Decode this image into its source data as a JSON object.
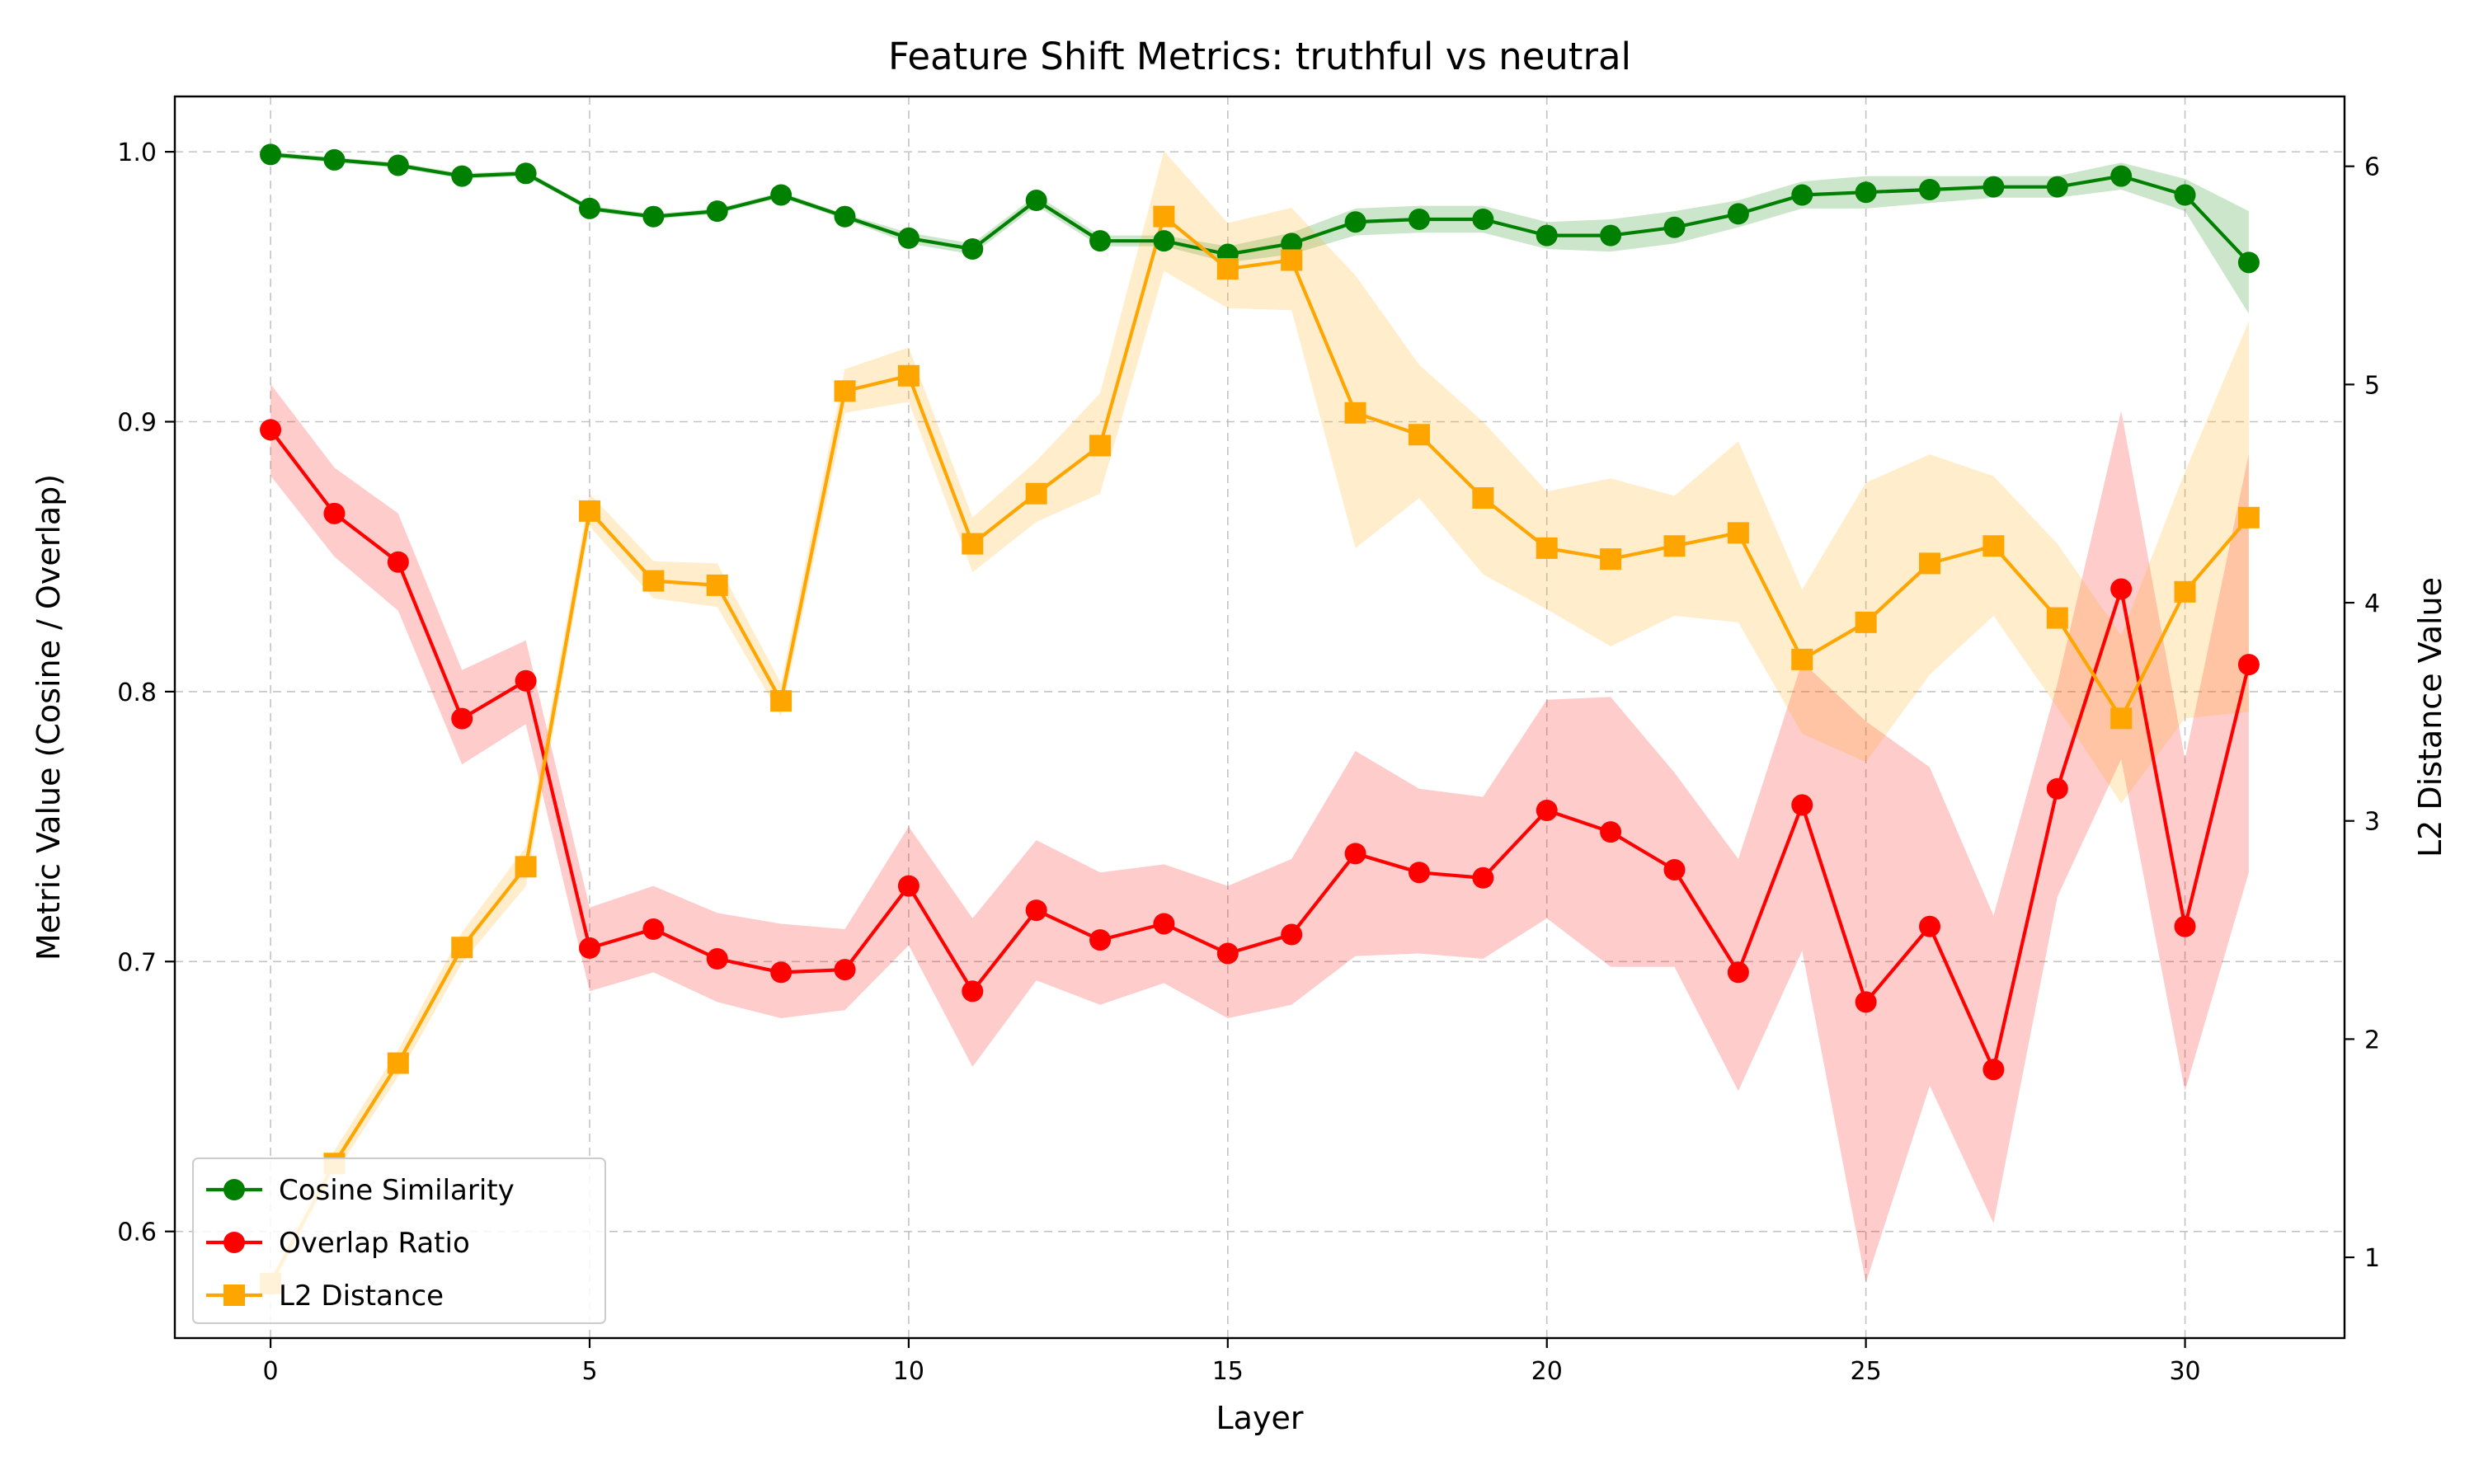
{
  "chart_data": {
    "type": "line",
    "title": "Feature Shift Metrics: truthful vs neutral",
    "xlabel": "Layer",
    "ylabel": "Metric Value (Cosine / Overlap)",
    "y2label": "L2 Distance Value",
    "xlim": [
      -1.5,
      32.5
    ],
    "ylim": [
      0.5605,
      1.0205
    ],
    "y2lim": [
      0.63,
      6.32
    ],
    "xticks": [
      0,
      5,
      10,
      15,
      20,
      25,
      30
    ],
    "xtick_labels": [
      "0",
      "5",
      "10",
      "15",
      "20",
      "25",
      "30"
    ],
    "yticks": [
      0.6,
      0.7,
      0.8,
      0.9,
      1.0
    ],
    "ytick_labels": [
      "0.6",
      "0.7",
      "0.8",
      "0.9",
      "1.0"
    ],
    "y2ticks": [
      1,
      2,
      3,
      4,
      5,
      6
    ],
    "y2tick_labels": [
      "1",
      "2",
      "3",
      "4",
      "5",
      "6"
    ],
    "grid": true,
    "legend_position": "lower-left",
    "x": [
      0,
      1,
      2,
      3,
      4,
      5,
      6,
      7,
      8,
      9,
      10,
      11,
      12,
      13,
      14,
      15,
      16,
      17,
      18,
      19,
      20,
      21,
      22,
      23,
      24,
      25,
      26,
      27,
      28,
      29,
      30,
      31
    ],
    "series": [
      {
        "name": "Cosine Similarity",
        "axis": "left",
        "color": "#008000",
        "marker": "circle",
        "values": [
          0.999,
          0.997,
          0.995,
          0.991,
          0.992,
          0.979,
          0.976,
          0.978,
          0.984,
          0.976,
          0.968,
          0.964,
          0.982,
          0.967,
          0.967,
          0.962,
          0.966,
          0.974,
          0.975,
          0.975,
          0.969,
          0.969,
          0.972,
          0.977,
          0.984,
          0.985,
          0.986,
          0.987,
          0.987,
          0.991,
          0.984,
          0.959
        ],
        "lower": [
          0.998,
          0.996,
          0.994,
          0.99,
          0.991,
          0.978,
          0.975,
          0.977,
          0.983,
          0.975,
          0.966,
          0.962,
          0.98,
          0.965,
          0.965,
          0.959,
          0.962,
          0.969,
          0.97,
          0.97,
          0.964,
          0.963,
          0.966,
          0.972,
          0.979,
          0.979,
          0.981,
          0.983,
          0.983,
          0.986,
          0.978,
          0.94
        ],
        "upper": [
          1.0,
          0.998,
          0.996,
          0.992,
          0.993,
          0.98,
          0.977,
          0.979,
          0.985,
          0.977,
          0.97,
          0.966,
          0.984,
          0.969,
          0.969,
          0.965,
          0.97,
          0.979,
          0.98,
          0.98,
          0.974,
          0.975,
          0.978,
          0.982,
          0.989,
          0.991,
          0.991,
          0.991,
          0.991,
          0.996,
          0.99,
          0.978
        ]
      },
      {
        "name": "Overlap Ratio",
        "axis": "left",
        "color": "#ff0000",
        "marker": "circle",
        "values": [
          0.897,
          0.866,
          0.848,
          0.79,
          0.804,
          0.705,
          0.712,
          0.701,
          0.696,
          0.697,
          0.728,
          0.689,
          0.719,
          0.708,
          0.714,
          0.703,
          0.71,
          0.74,
          0.733,
          0.731,
          0.756,
          0.748,
          0.734,
          0.696,
          0.758,
          0.685,
          0.713,
          0.66,
          0.764,
          0.838,
          0.713,
          0.81
        ],
        "lower": [
          0.88,
          0.85,
          0.83,
          0.773,
          0.788,
          0.689,
          0.696,
          0.685,
          0.679,
          0.682,
          0.706,
          0.661,
          0.693,
          0.684,
          0.692,
          0.679,
          0.684,
          0.702,
          0.703,
          0.701,
          0.716,
          0.698,
          0.698,
          0.652,
          0.704,
          0.581,
          0.654,
          0.603,
          0.724,
          0.775,
          0.652,
          0.733
        ],
        "upper": [
          0.914,
          0.883,
          0.866,
          0.808,
          0.819,
          0.72,
          0.728,
          0.718,
          0.714,
          0.712,
          0.75,
          0.716,
          0.745,
          0.733,
          0.736,
          0.728,
          0.738,
          0.778,
          0.764,
          0.761,
          0.797,
          0.798,
          0.77,
          0.738,
          0.811,
          0.789,
          0.772,
          0.717,
          0.803,
          0.904,
          0.775,
          0.888
        ]
      },
      {
        "name": "L2 Distance",
        "axis": "right",
        "color": "#ffa500",
        "marker": "square",
        "values": [
          0.88,
          1.43,
          1.89,
          2.42,
          2.79,
          4.42,
          4.1,
          4.08,
          3.55,
          4.97,
          5.04,
          4.27,
          4.5,
          4.72,
          5.77,
          5.53,
          5.57,
          4.87,
          4.77,
          4.48,
          4.25,
          4.2,
          4.26,
          4.32,
          3.74,
          3.91,
          4.18,
          4.26,
          3.93,
          3.47,
          4.05,
          4.39
        ],
        "lower": [
          0.85,
          1.38,
          1.83,
          2.35,
          2.7,
          4.35,
          4.02,
          3.98,
          3.48,
          4.87,
          4.92,
          4.14,
          4.37,
          4.5,
          5.52,
          5.35,
          5.34,
          4.25,
          4.48,
          4.13,
          3.97,
          3.8,
          3.94,
          3.91,
          3.4,
          3.27,
          3.67,
          3.94,
          3.52,
          3.08,
          3.47,
          3.5
        ],
        "upper": [
          0.92,
          1.49,
          1.95,
          2.49,
          2.88,
          4.5,
          4.19,
          4.18,
          3.63,
          5.07,
          5.17,
          4.39,
          4.65,
          4.96,
          6.07,
          5.74,
          5.81,
          5.5,
          5.09,
          4.83,
          4.51,
          4.57,
          4.49,
          4.74,
          4.06,
          4.55,
          4.68,
          4.58,
          4.27,
          3.85,
          4.6,
          5.29
        ]
      }
    ]
  }
}
